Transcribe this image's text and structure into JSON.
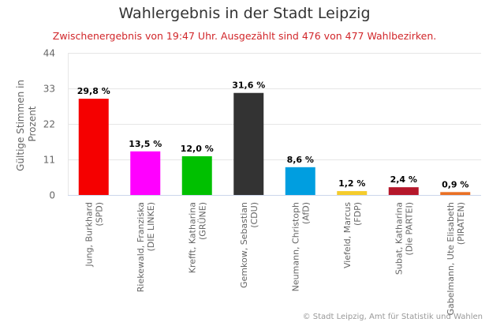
{
  "chart_data": {
    "type": "bar",
    "title": "Wahlergebnis in der Stadt Leipzig",
    "subtitle": "Zwischenergebnis von 19:47 Uhr. Ausgezählt sind 476 von 477 Wahlbezirken.",
    "ylabel": [
      "Gültige Stimmen in",
      "Prozent"
    ],
    "xlabel": "",
    "ylim": [
      0,
      44
    ],
    "yticks": [
      0,
      11,
      22,
      33,
      44
    ],
    "grid": true,
    "categories": [
      [
        "Jung, Burkhard",
        "(SPD)"
      ],
      [
        "Riekewald, Franziska",
        "(DIE LINKE)"
      ],
      [
        "Krefft, Katharina",
        "(GRÜNE)"
      ],
      [
        "Gemkow, Sebastian",
        "(CDU)"
      ],
      [
        "Neumann, Christoph",
        "(AfD)"
      ],
      [
        "Viefeld, Marcus",
        "(FDP)"
      ],
      [
        "Subat, Katharina",
        "(Die PARTEI)"
      ],
      [
        "Gabelmann, Ute Elisabeth",
        "(PIRATEN)"
      ]
    ],
    "values": [
      29.8,
      13.5,
      12.0,
      31.6,
      8.6,
      1.2,
      2.4,
      0.9
    ],
    "value_labels": [
      "29,8 %",
      "13,5 %",
      "12,0 %",
      "31,6 %",
      "8,6 %",
      "1,2 %",
      "2,4 %",
      "0,9 %"
    ],
    "colors": [
      "#f50000",
      "#ff00ff",
      "#00c000",
      "#333333",
      "#009ee0",
      "#f5cc2c",
      "#b5172b",
      "#e97025"
    ]
  },
  "credits": "© Stadt Leipzig, Amt für Statistik und Wahlen"
}
